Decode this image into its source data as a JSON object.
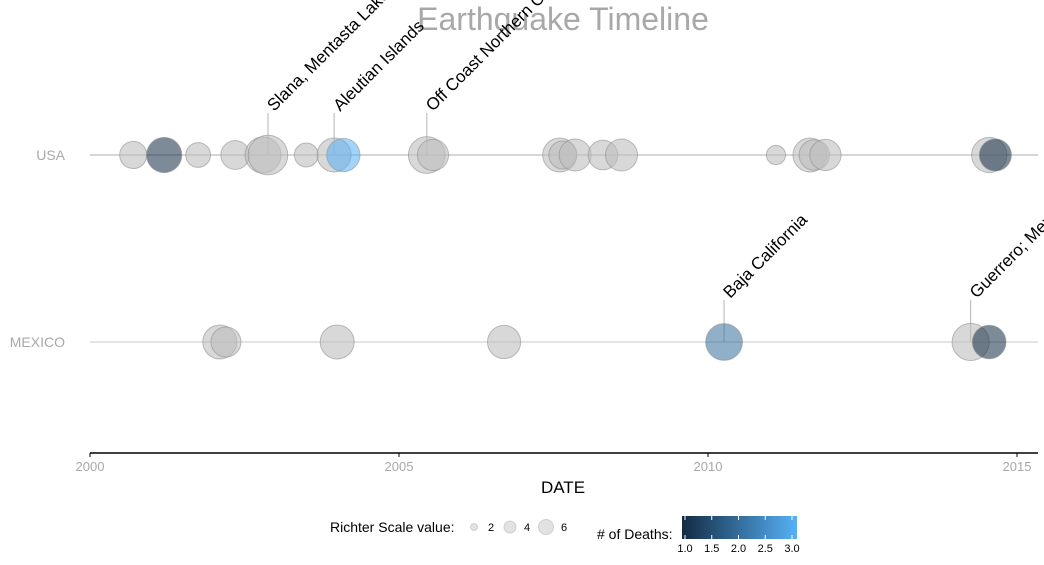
{
  "chart_data": {
    "type": "scatter",
    "title": "Earthquake Timeline",
    "xlabel": "DATE",
    "xlim": [
      2000,
      2015.3
    ],
    "x_ticks": [
      "2000",
      "2005",
      "2010",
      "2015"
    ],
    "categories": [
      "USA",
      "MEXICO"
    ],
    "grid": false,
    "series": [
      {
        "country": "USA",
        "points": [
          {
            "x": 2000.7,
            "magnitude": 4.8,
            "deaths": null
          },
          {
            "x": 2001.2,
            "magnitude": 6.8,
            "deaths": 1
          },
          {
            "x": 2001.75,
            "magnitude": 4.2,
            "deaths": null
          },
          {
            "x": 2002.35,
            "magnitude": 5.2,
            "deaths": null
          },
          {
            "x": 2002.8,
            "magnitude": 7.0,
            "deaths": null
          },
          {
            "x": 2002.88,
            "magnitude": 7.9,
            "deaths": null
          },
          {
            "x": 2003.5,
            "magnitude": 4.0,
            "deaths": null
          },
          {
            "x": 2003.95,
            "magnitude": 6.5,
            "deaths": null
          },
          {
            "x": 2004.1,
            "magnitude": 6.3,
            "deaths": 3
          },
          {
            "x": 2005.45,
            "magnitude": 7.2,
            "deaths": null
          },
          {
            "x": 2005.55,
            "magnitude": 5.8,
            "deaths": null
          },
          {
            "x": 2007.6,
            "magnitude": 6.5,
            "deaths": null
          },
          {
            "x": 2007.65,
            "magnitude": 5.0,
            "deaths": null
          },
          {
            "x": 2007.85,
            "magnitude": 6.0,
            "deaths": null
          },
          {
            "x": 2008.3,
            "magnitude": 5.4,
            "deaths": null
          },
          {
            "x": 2008.6,
            "magnitude": 6.0,
            "deaths": null
          },
          {
            "x": 2011.1,
            "magnitude": 2.8,
            "deaths": null
          },
          {
            "x": 2011.65,
            "magnitude": 6.5,
            "deaths": null
          },
          {
            "x": 2011.72,
            "magnitude": 5.6,
            "deaths": null
          },
          {
            "x": 2011.9,
            "magnitude": 5.8,
            "deaths": null
          },
          {
            "x": 2014.55,
            "magnitude": 6.8,
            "deaths": null
          },
          {
            "x": 2014.65,
            "magnitude": 6.0,
            "deaths": 1
          }
        ]
      },
      {
        "country": "MEXICO",
        "points": [
          {
            "x": 2002.1,
            "magnitude": 6.5,
            "deaths": null
          },
          {
            "x": 2002.2,
            "magnitude": 5.5,
            "deaths": null
          },
          {
            "x": 2004.0,
            "magnitude": 6.5,
            "deaths": null
          },
          {
            "x": 2006.7,
            "magnitude": 6.3,
            "deaths": null
          },
          {
            "x": 2010.26,
            "magnitude": 7.2,
            "deaths": 2
          },
          {
            "x": 2014.25,
            "magnitude": 7.3,
            "deaths": null
          },
          {
            "x": 2014.55,
            "magnitude": 6.4,
            "deaths": 1
          }
        ]
      }
    ],
    "annotations": [
      {
        "country": "USA",
        "x": 2002.88,
        "text": "Slana, Mentasta Lake"
      },
      {
        "country": "USA",
        "x": 2003.95,
        "text": "Aleutian Islands"
      },
      {
        "country": "USA",
        "x": 2005.45,
        "text": "Off Coast Northern California"
      },
      {
        "country": "MEXICO",
        "x": 2010.26,
        "text": "Baja California"
      },
      {
        "country": "MEXICO",
        "x": 2014.25,
        "text": "Guerrero; Mexico City"
      }
    ],
    "legend": {
      "size_title": "Richter Scale value:",
      "size_values": [
        "2",
        "4",
        "6"
      ],
      "color_title": "# of Deaths:",
      "color_ticks": [
        "1.0",
        "1.5",
        "2.0",
        "2.5",
        "3.0"
      ],
      "color_low": "#132b43",
      "color_high": "#56b1f7",
      "placement": "bottom"
    },
    "colors": {
      "no_data_fill": "#bebebe",
      "axis": "#000000",
      "country_line": "#c8c8c8",
      "muted_text": "#a8a8a8"
    }
  }
}
